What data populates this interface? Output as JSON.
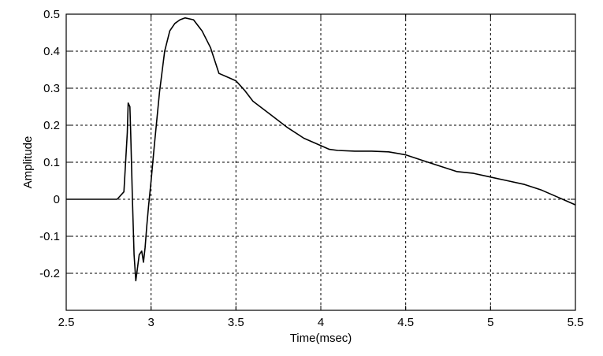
{
  "chart_data": {
    "type": "line",
    "title": "",
    "xlabel": "Time(msec)",
    "ylabel": "Amplitude",
    "xlim": [
      2.5,
      5.5
    ],
    "ylim": [
      -0.3,
      0.5
    ],
    "xticks": [
      2.5,
      3,
      3.5,
      4,
      4.5,
      5,
      5.5
    ],
    "xtick_labels": [
      "2.5",
      "3",
      "3.5",
      "4",
      "4.5",
      "5",
      "5.5"
    ],
    "yticks": [
      -0.2,
      -0.1,
      0,
      0.1,
      0.2,
      0.3,
      0.4,
      0.5
    ],
    "ytick_labels": [
      "-0.2",
      "-0.1",
      "0",
      "0.1",
      "0.2",
      "0.3",
      "0.4",
      "0.5"
    ],
    "grid": true,
    "grid_style": "dotted",
    "line_color": "#000000",
    "series": [
      {
        "x": [
          2.5,
          2.7,
          2.8,
          2.84,
          2.86,
          2.865,
          2.875,
          2.88,
          2.89,
          2.9,
          2.91,
          2.93,
          2.945,
          2.955,
          2.965,
          2.975,
          2.985,
          3.0,
          3.02,
          3.05,
          3.08,
          3.11,
          3.14,
          3.17,
          3.2,
          3.25,
          3.3,
          3.35,
          3.4,
          3.45,
          3.5,
          3.55,
          3.6,
          3.7,
          3.8,
          3.9,
          4.0,
          4.05,
          4.1,
          4.2,
          4.3,
          4.4,
          4.5,
          4.6,
          4.7,
          4.8,
          4.9,
          5.0,
          5.1,
          5.2,
          5.3,
          5.4,
          5.45,
          5.5
        ],
        "y": [
          0,
          0,
          0,
          0.02,
          0.18,
          0.26,
          0.25,
          0.18,
          0.0,
          -0.15,
          -0.22,
          -0.15,
          -0.14,
          -0.17,
          -0.13,
          -0.07,
          -0.02,
          0.05,
          0.15,
          0.29,
          0.4,
          0.455,
          0.475,
          0.485,
          0.49,
          0.485,
          0.455,
          0.41,
          0.34,
          0.33,
          0.32,
          0.295,
          0.265,
          0.23,
          0.195,
          0.165,
          0.145,
          0.135,
          0.132,
          0.13,
          0.13,
          0.128,
          0.12,
          0.105,
          0.09,
          0.075,
          0.07,
          0.06,
          0.05,
          0.04,
          0.025,
          0.005,
          -0.005,
          -0.015
        ]
      }
    ]
  }
}
